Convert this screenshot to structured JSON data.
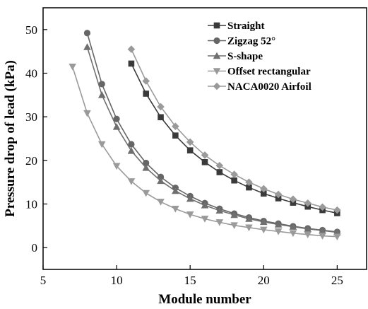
{
  "chart_data": {
    "type": "line",
    "xlabel": "Module number",
    "ylabel": "Pressure drop of lead (kPa)",
    "xlim": [
      5,
      27
    ],
    "ylim": [
      -5,
      55
    ],
    "xticks": [
      5,
      10,
      15,
      20,
      25
    ],
    "yticks": [
      0,
      10,
      20,
      30,
      40,
      50
    ],
    "grid": false,
    "legend_position": "top-right",
    "series": [
      {
        "name": "Straight",
        "marker": "square",
        "color": "#3a3a3a",
        "x": [
          11,
          12,
          13,
          14,
          15,
          16,
          17,
          18,
          19,
          20,
          21,
          22,
          23,
          24,
          25
        ],
        "y": [
          42.2,
          35.3,
          29.9,
          25.7,
          22.3,
          19.6,
          17.3,
          15.4,
          13.8,
          12.4,
          11.3,
          10.3,
          9.4,
          8.6,
          7.9
        ]
      },
      {
        "name": "Zigzag 52°",
        "marker": "circle",
        "color": "#666666",
        "x": [
          8,
          9,
          10,
          11,
          12,
          13,
          14,
          15,
          16,
          17,
          18,
          19,
          20,
          21,
          22,
          23,
          24,
          25
        ],
        "y": [
          49.2,
          37.5,
          29.5,
          23.7,
          19.4,
          16.2,
          13.7,
          11.8,
          10.2,
          8.9,
          7.8,
          6.9,
          6.1,
          5.5,
          4.9,
          4.4,
          4.0,
          3.6
        ]
      },
      {
        "name": "S-shape",
        "marker": "triangle-up",
        "color": "#6f6f6f",
        "x": [
          8,
          9,
          10,
          11,
          12,
          13,
          14,
          15,
          16,
          17,
          18,
          19,
          20,
          21,
          22,
          23,
          24,
          25
        ],
        "y": [
          46.0,
          35.0,
          27.7,
          22.2,
          18.3,
          15.3,
          13.0,
          11.2,
          9.7,
          8.5,
          7.5,
          6.6,
          5.9,
          5.3,
          4.8,
          4.3,
          3.9,
          3.5
        ]
      },
      {
        "name": "Offset rectangular",
        "marker": "triangle-down",
        "color": "#9a9a9a",
        "x": [
          7,
          8,
          9,
          10,
          11,
          12,
          13,
          14,
          15,
          16,
          17,
          18,
          19,
          20,
          21,
          22,
          23,
          24,
          25
        ],
        "y": [
          41.5,
          30.8,
          23.7,
          18.7,
          15.2,
          12.5,
          10.5,
          8.9,
          7.6,
          6.6,
          5.8,
          5.1,
          4.6,
          4.1,
          3.7,
          3.3,
          3.0,
          2.7,
          2.5
        ]
      },
      {
        "name": "NACA0020 Airfoil",
        "marker": "diamond",
        "color": "#9a9a9a",
        "x": [
          11,
          12,
          13,
          14,
          15,
          16,
          17,
          18,
          19,
          20,
          21,
          22,
          23,
          24,
          25
        ],
        "y": [
          45.5,
          38.2,
          32.3,
          27.8,
          24.2,
          21.2,
          18.8,
          16.8,
          15.0,
          13.5,
          12.2,
          11.1,
          10.2,
          9.3,
          8.6
        ]
      }
    ]
  }
}
